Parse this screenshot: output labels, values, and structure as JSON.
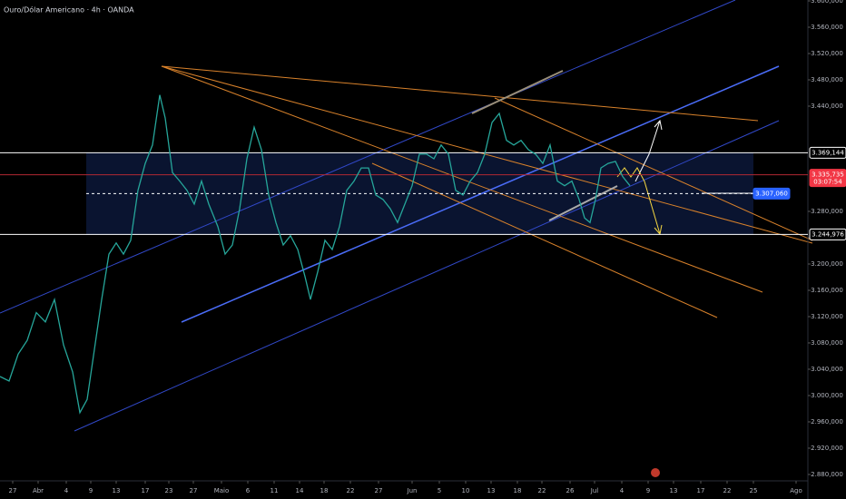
{
  "chart_data": {
    "type": "line",
    "title": "Ouro/Dólar Americano · 4h · OANDA",
    "color": "#26a69a",
    "x": [
      0,
      1,
      2,
      3,
      4,
      5,
      6,
      7,
      8,
      8.8,
      9.6,
      10.4,
      11.2,
      12,
      12.8,
      13.6,
      14.4,
      15.2,
      16,
      16.8,
      17.6,
      18.2,
      19,
      19.8,
      20.6,
      21.4,
      22.2,
      23,
      24,
      24.8,
      25.6,
      26.4,
      27.2,
      28,
      28.8,
      29.6,
      30.4,
      31.2,
      32,
      32.8,
      33.6,
      34.2,
      35,
      35.8,
      36.6,
      37.4,
      38.2,
      39,
      39.8,
      40.6,
      41.4,
      42.2,
      43,
      43.8,
      44.6,
      45.4,
      46.2,
      47,
      47.8,
      48.6,
      49.4,
      50.2,
      51,
      51.8,
      52.6,
      53.4,
      54.2,
      55,
      55.8,
      56.6,
      57.4,
      58.2,
      59,
      59.8,
      60.6,
      61.4,
      62.2,
      63,
      63.8,
      64.4,
      65,
      65.6,
      66.2,
      67,
      67.8,
      68.6,
      69.4
    ],
    "values": [
      3029,
      3022,
      3063,
      3084,
      3126,
      3112,
      3146,
      3077,
      3036,
      2974,
      2994,
      3070,
      3146,
      3215,
      3232,
      3215,
      3236,
      3312,
      3353,
      3381,
      3457,
      3422,
      3339,
      3326,
      3312,
      3291,
      3326,
      3291,
      3257,
      3215,
      3229,
      3284,
      3360,
      3408,
      3374,
      3305,
      3263,
      3229,
      3243,
      3222,
      3181,
      3146,
      3188,
      3236,
      3222,
      3257,
      3312,
      3326,
      3346,
      3346,
      3305,
      3298,
      3284,
      3263,
      3291,
      3319,
      3367,
      3367,
      3360,
      3381,
      3367,
      3312,
      3305,
      3326,
      3339,
      3367,
      3415,
      3429,
      3388,
      3381,
      3388,
      3374,
      3367,
      3353,
      3381,
      3326,
      3319,
      3326,
      3298,
      3270,
      3263,
      3298,
      3346,
      3353,
      3356,
      3333,
      3319
    ],
    "xlim": [
      0,
      89
    ],
    "xticks": [
      {
        "value": 1.4,
        "label": "27"
      },
      {
        "value": 4.2,
        "label": "Abr"
      },
      {
        "value": 7.3,
        "label": "4"
      },
      {
        "value": 10,
        "label": "9"
      },
      {
        "value": 12.8,
        "label": "13"
      },
      {
        "value": 16,
        "label": "17"
      },
      {
        "value": 18.6,
        "label": "23"
      },
      {
        "value": 21.3,
        "label": "27"
      },
      {
        "value": 24.4,
        "label": "Maio"
      },
      {
        "value": 27.3,
        "label": "6"
      },
      {
        "value": 30.2,
        "label": "11"
      },
      {
        "value": 33,
        "label": "14"
      },
      {
        "value": 35.7,
        "label": "18"
      },
      {
        "value": 38.6,
        "label": "22"
      },
      {
        "value": 41.7,
        "label": "27"
      },
      {
        "value": 45.4,
        "label": "Jun"
      },
      {
        "value": 48.4,
        "label": "5"
      },
      {
        "value": 51.3,
        "label": "10"
      },
      {
        "value": 54.1,
        "label": "13"
      },
      {
        "value": 57,
        "label": "18"
      },
      {
        "value": 59.7,
        "label": "22"
      },
      {
        "value": 62.8,
        "label": "26"
      },
      {
        "value": 65.5,
        "label": "Jul"
      },
      {
        "value": 68.5,
        "label": "4"
      },
      {
        "value": 71.4,
        "label": "9"
      },
      {
        "value": 74.2,
        "label": "13"
      },
      {
        "value": 77.2,
        "label": "17"
      },
      {
        "value": 80.1,
        "label": "22"
      },
      {
        "value": 83,
        "label": "25"
      },
      {
        "value": 87.7,
        "label": "Ago"
      }
    ],
    "ylim": [
      2870.3,
      3601.4
    ],
    "yticks": [
      {
        "value": 2880,
        "label": "2.880,000"
      },
      {
        "value": 2920,
        "label": "2.920,000"
      },
      {
        "value": 2960,
        "label": "2.960,000"
      },
      {
        "value": 3000,
        "label": "3.000,000"
      },
      {
        "value": 3040,
        "label": "3.040,000"
      },
      {
        "value": 3080,
        "label": "3.080,000"
      },
      {
        "value": 3120,
        "label": "3.120,000"
      },
      {
        "value": 3160,
        "label": "3.160,000"
      },
      {
        "value": 3200,
        "label": "3.200,000"
      },
      {
        "value": 3240,
        "label": "3.240,000"
      },
      {
        "value": 3280,
        "label": "3.280,000"
      },
      {
        "value": 3440,
        "label": "3.440,000"
      },
      {
        "value": 3480,
        "label": "3.480,000"
      },
      {
        "value": 3520,
        "label": "3.520,000"
      },
      {
        "value": 3560,
        "label": "3.560,000"
      },
      {
        "value": 3600,
        "label": "3.600,000"
      }
    ],
    "hlines": [
      {
        "value": 3369.144,
        "label": "3.369,144",
        "color": "#ffffff",
        "box": "#000000",
        "text": "#ffffff",
        "style": "solid"
      },
      {
        "value": 3244.976,
        "label": "3.244,976",
        "color": "#ffffff",
        "box": "#000000",
        "text": "#ffffff",
        "style": "solid"
      },
      {
        "value": 3307.06,
        "label": "3.307,060",
        "color": "#ffffff",
        "box": "#2962ff",
        "text": "#ffffff",
        "style": "dashed"
      },
      {
        "value": 3335.735,
        "label": "3.335,735",
        "color": "#b22833",
        "box": "#f23645",
        "text": "#ffffff",
        "style": "solid",
        "countdown": "03:07:54"
      }
    ]
  }
}
